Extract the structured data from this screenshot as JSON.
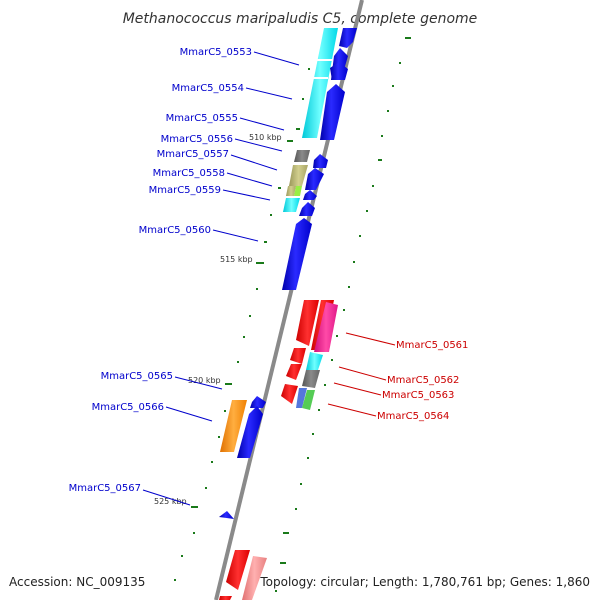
{
  "title": "Methanococcus maripaludis C5, complete genome",
  "accession": "Accession: NC_009135",
  "topology": "Topology: circular; Length: 1,780,761 bp; Genes: 1,860",
  "kbp_marks": [
    "510 kbp",
    "515 kbp",
    "520 kbp",
    "525 kbp"
  ],
  "labels_left": [
    "MmarC5_0553",
    "MmarC5_0554",
    "MmarC5_0555",
    "MmarC5_0556",
    "MmarC5_0557",
    "MmarC5_0558",
    "MmarC5_0559",
    "MmarC5_0560",
    "MmarC5_0565",
    "MmarC5_0566",
    "MmarC5_0567"
  ],
  "labels_right": [
    "MmarC5_0561",
    "MmarC5_0562",
    "MmarC5_0563",
    "MmarC5_0564"
  ],
  "colors": {
    "forward_label": "#0000cc",
    "reverse_label": "#cc0000",
    "cds": "#0000ee",
    "feature_cyan": "#00e5ee",
    "feature_red": "#ee0000",
    "feature_pink": "#ee1a8c",
    "feature_gray": "#707070",
    "feature_olive": "#b5b26e",
    "feature_orange": "#ff8c00",
    "feature_salmon": "#f08a8a",
    "gc_tick": "#1a7a1a",
    "backbone": "#888888"
  }
}
